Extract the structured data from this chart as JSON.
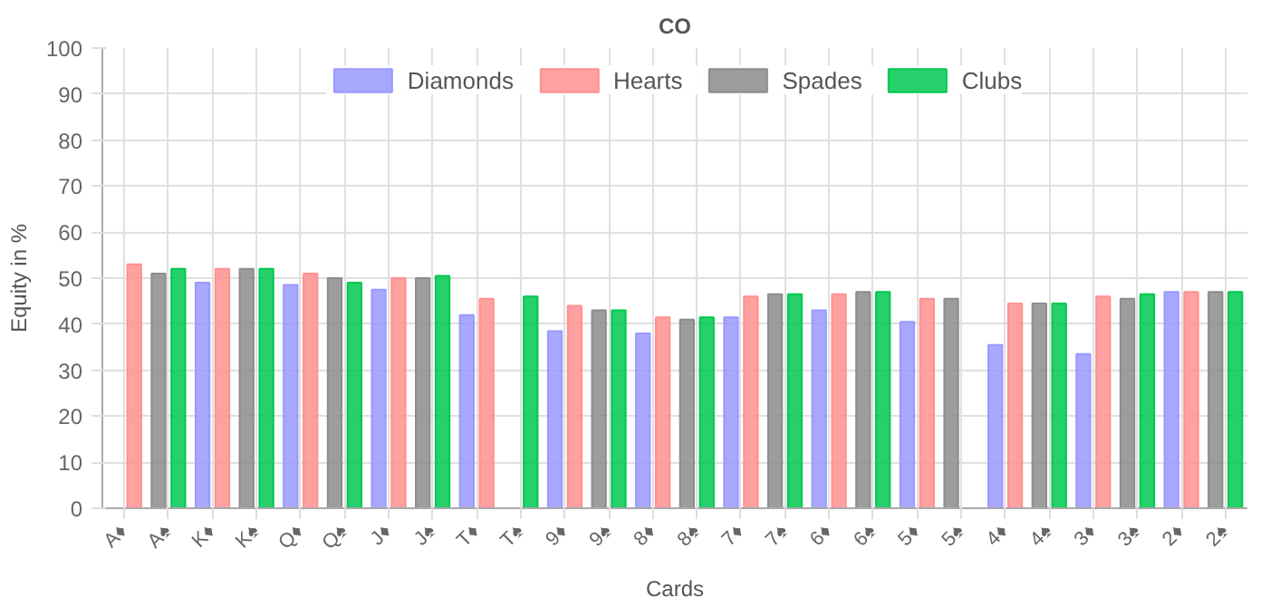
{
  "chart_data": {
    "type": "bar",
    "title": "CO",
    "xlabel": "Cards",
    "ylabel": "Equity in %",
    "categories": [
      "A♦",
      "A♠",
      "K♦",
      "K♠",
      "Q♦",
      "Q♠",
      "J♦",
      "J♠",
      "T♦",
      "T♠",
      "9♦",
      "9♠",
      "8♦",
      "8♠",
      "7♦",
      "7♠",
      "6♦",
      "6♠",
      "5♦",
      "5♠",
      "4♦",
      "4♠",
      "3♦",
      "3♠",
      "2♦",
      "2♠"
    ],
    "series": [
      {
        "name": "Diamonds",
        "color": "#9999ff",
        "values": [
          0,
          null,
          49,
          null,
          48.5,
          null,
          47.5,
          null,
          42,
          null,
          38.5,
          null,
          38,
          null,
          41.5,
          null,
          43,
          null,
          40.5,
          null,
          35.5,
          null,
          33.5,
          null,
          47,
          null
        ]
      },
      {
        "name": "Hearts",
        "color": "#ff9090",
        "values": [
          53,
          null,
          52,
          null,
          51,
          null,
          50,
          null,
          45.5,
          null,
          44,
          null,
          41.5,
          null,
          46,
          null,
          46.5,
          null,
          45.5,
          null,
          44.5,
          null,
          46,
          null,
          47,
          null
        ]
      },
      {
        "name": "Spades",
        "color": "#8c8c8c",
        "values": [
          null,
          51,
          null,
          52,
          null,
          50,
          null,
          50,
          null,
          0,
          null,
          43,
          null,
          41,
          null,
          46.5,
          null,
          47,
          null,
          45.5,
          null,
          44.5,
          null,
          45.5,
          null,
          47
        ]
      },
      {
        "name": "Clubs",
        "color": "#00c850",
        "values": [
          null,
          52,
          null,
          52,
          null,
          49,
          null,
          50.5,
          null,
          46,
          null,
          43,
          null,
          41.5,
          null,
          46.5,
          null,
          47,
          null,
          0,
          null,
          44.5,
          null,
          46.5,
          null,
          47
        ]
      }
    ],
    "ylim": [
      0,
      100
    ],
    "yticks": [
      0,
      10,
      20,
      30,
      40,
      50,
      60,
      70,
      80,
      90,
      100
    ],
    "grid": true,
    "legend": "top"
  }
}
